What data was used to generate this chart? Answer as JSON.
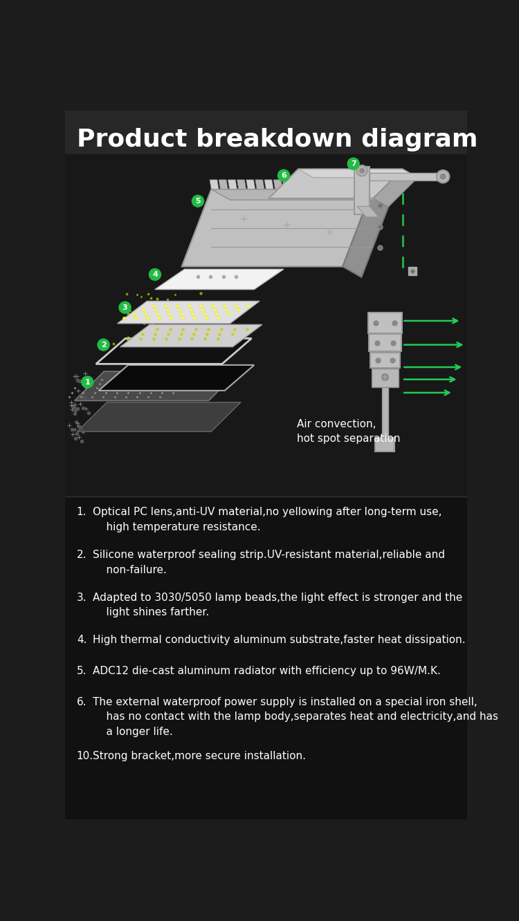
{
  "title": "Product breakdown diagram",
  "title_fontsize": 26,
  "title_color": "#ffffff",
  "title_fontweight": "bold",
  "bg_color": "#1c1c1c",
  "diagram_bg": "#1a1a1a",
  "text_bg": "#111111",
  "green_color": "#22bb44",
  "arrow_color": "#22cc55",
  "white_text": "#ffffff",
  "gray_component": "#b8b8b8",
  "light_gray": "#d0d0d0",
  "dark_gray": "#888888",
  "air_convection_text": "Air convection,\nhot spot separation",
  "descriptions": [
    {
      "num": "1.",
      "text": "Optical PC lens,anti-UV material,no yellowing after long-term use,\n    high temperature resistance."
    },
    {
      "num": "2.",
      "text": "Silicone waterproof sealing strip.UV-resistant material,reliable and\n    non-failure."
    },
    {
      "num": "3.",
      "text": "Adapted to 3030/5050 lamp beads,the light effect is stronger and the\n    light shines farther."
    },
    {
      "num": "4.",
      "text": "High thermal conductivity aluminum substrate,faster heat dissipation."
    },
    {
      "num": "5.",
      "text": "ADC12 die-cast aluminum radiator with efficiency up to 96W/M.K."
    },
    {
      "num": "6.",
      "text": "The external waterproof power supply is installed on a special iron shell,\n    has no contact with the lamp body,separates heat and electricity,and has\n    a longer life."
    },
    {
      "num": "10.",
      "text": "Strong bracket,more secure installation."
    }
  ]
}
